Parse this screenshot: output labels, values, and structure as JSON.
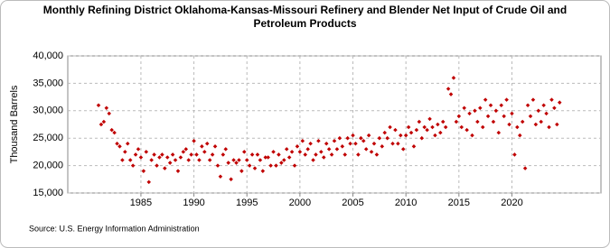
{
  "chart_data": {
    "type": "scatter",
    "title": "Monthly Refining District Oklahoma-Kansas-Missouri Refinery and Blender Net Input of Crude Oil and Petroleum Products",
    "y_label": "Thousand Barrels",
    "source": "Source: U.S. Energy Information Administration",
    "color": "#c00000",
    "grid": true,
    "xlim": [
      1978.1,
      2028.4
    ],
    "xticks": [
      1985,
      1990,
      1995,
      2000,
      2005,
      2010,
      2015,
      2020
    ],
    "ylim": [
      15000,
      40000
    ],
    "yticks": [
      {
        "value": 15000,
        "label": "15,000"
      },
      {
        "value": 20000,
        "label": "20,000"
      },
      {
        "value": 25000,
        "label": "25,000"
      },
      {
        "value": 30000,
        "label": "30,000"
      },
      {
        "value": 35000,
        "label": "35,000"
      },
      {
        "value": 40000,
        "label": "40,000"
      }
    ],
    "x": [
      1981.0,
      1981.25,
      1981.5,
      1981.75,
      1982.0,
      1982.25,
      1982.5,
      1982.75,
      1983.0,
      1983.25,
      1983.5,
      1983.75,
      1984.0,
      1984.25,
      1984.5,
      1984.75,
      1985.0,
      1985.25,
      1985.5,
      1985.75,
      1986.0,
      1986.25,
      1986.5,
      1986.75,
      1987.0,
      1987.25,
      1987.5,
      1987.75,
      1988.0,
      1988.25,
      1988.5,
      1988.75,
      1989.0,
      1989.25,
      1989.5,
      1989.75,
      1990.0,
      1990.25,
      1990.5,
      1990.75,
      1991.0,
      1991.25,
      1991.5,
      1991.75,
      1992.0,
      1992.25,
      1992.5,
      1992.75,
      1993.0,
      1993.25,
      1993.5,
      1993.75,
      1994.0,
      1994.25,
      1994.5,
      1994.75,
      1995.0,
      1995.25,
      1995.5,
      1995.75,
      1996.0,
      1996.25,
      1996.5,
      1996.75,
      1997.0,
      1997.25,
      1997.5,
      1997.75,
      1998.0,
      1998.25,
      1998.5,
      1998.75,
      1999.0,
      1999.25,
      1999.5,
      1999.75,
      2000.0,
      2000.25,
      2000.5,
      2000.75,
      2001.0,
      2001.25,
      2001.5,
      2001.75,
      2002.0,
      2002.25,
      2002.5,
      2002.75,
      2003.0,
      2003.25,
      2003.5,
      2003.75,
      2004.0,
      2004.25,
      2004.5,
      2004.75,
      2005.0,
      2005.25,
      2005.5,
      2005.75,
      2006.0,
      2006.25,
      2006.5,
      2006.75,
      2007.0,
      2007.25,
      2007.5,
      2007.75,
      2008.0,
      2008.25,
      2008.5,
      2008.75,
      2009.0,
      2009.25,
      2009.5,
      2009.75,
      2010.0,
      2010.25,
      2010.5,
      2010.75,
      2011.0,
      2011.25,
      2011.5,
      2011.75,
      2012.0,
      2012.25,
      2012.5,
      2012.75,
      2013.0,
      2013.25,
      2013.5,
      2013.75,
      2014.0,
      2014.25,
      2014.5,
      2014.75,
      2015.0,
      2015.25,
      2015.5,
      2015.75,
      2016.0,
      2016.25,
      2016.5,
      2016.75,
      2017.0,
      2017.25,
      2017.5,
      2017.75,
      2018.0,
      2018.25,
      2018.5,
      2018.75,
      2019.0,
      2019.25,
      2019.5,
      2019.75,
      2020.0,
      2020.25,
      2020.5,
      2020.75,
      2021.0,
      2021.25,
      2021.5,
      2021.75,
      2022.0,
      2022.25,
      2022.5,
      2022.75,
      2023.0,
      2023.25,
      2023.5,
      2023.75,
      2024.0,
      2024.25,
      2024.5
    ],
    "values": [
      31000,
      27500,
      28000,
      30500,
      29500,
      26500,
      26000,
      24000,
      23500,
      21000,
      22500,
      24000,
      21000,
      20000,
      22000,
      23000,
      21500,
      19000,
      22500,
      17000,
      21000,
      22000,
      20000,
      21500,
      22000,
      19500,
      21500,
      20500,
      22000,
      21000,
      19000,
      21500,
      22500,
      23000,
      21000,
      22000,
      24500,
      22000,
      21000,
      23500,
      22500,
      24000,
      21000,
      22000,
      23500,
      20000,
      18000,
      22000,
      23000,
      20500,
      17500,
      21000,
      20500,
      21000,
      19000,
      22500,
      21000,
      20000,
      22000,
      19500,
      22000,
      21000,
      19000,
      21500,
      21500,
      20000,
      22500,
      20000,
      22000,
      20500,
      21000,
      23000,
      21500,
      22500,
      20000,
      23500,
      22500,
      24500,
      22000,
      23000,
      24000,
      21000,
      22000,
      24500,
      22500,
      21500,
      24000,
      23000,
      22000,
      24500,
      23000,
      25000,
      23500,
      22000,
      25000,
      24000,
      25500,
      24000,
      22000,
      25000,
      24500,
      23000,
      25500,
      22500,
      24000,
      22000,
      25000,
      23500,
      26000,
      25000,
      27000,
      24000,
      26500,
      24000,
      25500,
      23000,
      25500,
      27000,
      26000,
      23500,
      26500,
      28000,
      25000,
      27000,
      26500,
      28500,
      27000,
      25500,
      27500,
      26000,
      28000,
      27000,
      34000,
      33000,
      36000,
      28000,
      29000,
      27000,
      30500,
      26500,
      29500,
      25500,
      30000,
      28000,
      30500,
      27000,
      32000,
      29000,
      31000,
      28000,
      30000,
      26000,
      31000,
      29000,
      32000,
      27500,
      29500,
      22000,
      27000,
      25500,
      28000,
      19500,
      31000,
      29000,
      32000,
      27500,
      30000,
      28000,
      31000,
      29500,
      27000,
      32000,
      30500,
      27500,
      31500
    ]
  }
}
